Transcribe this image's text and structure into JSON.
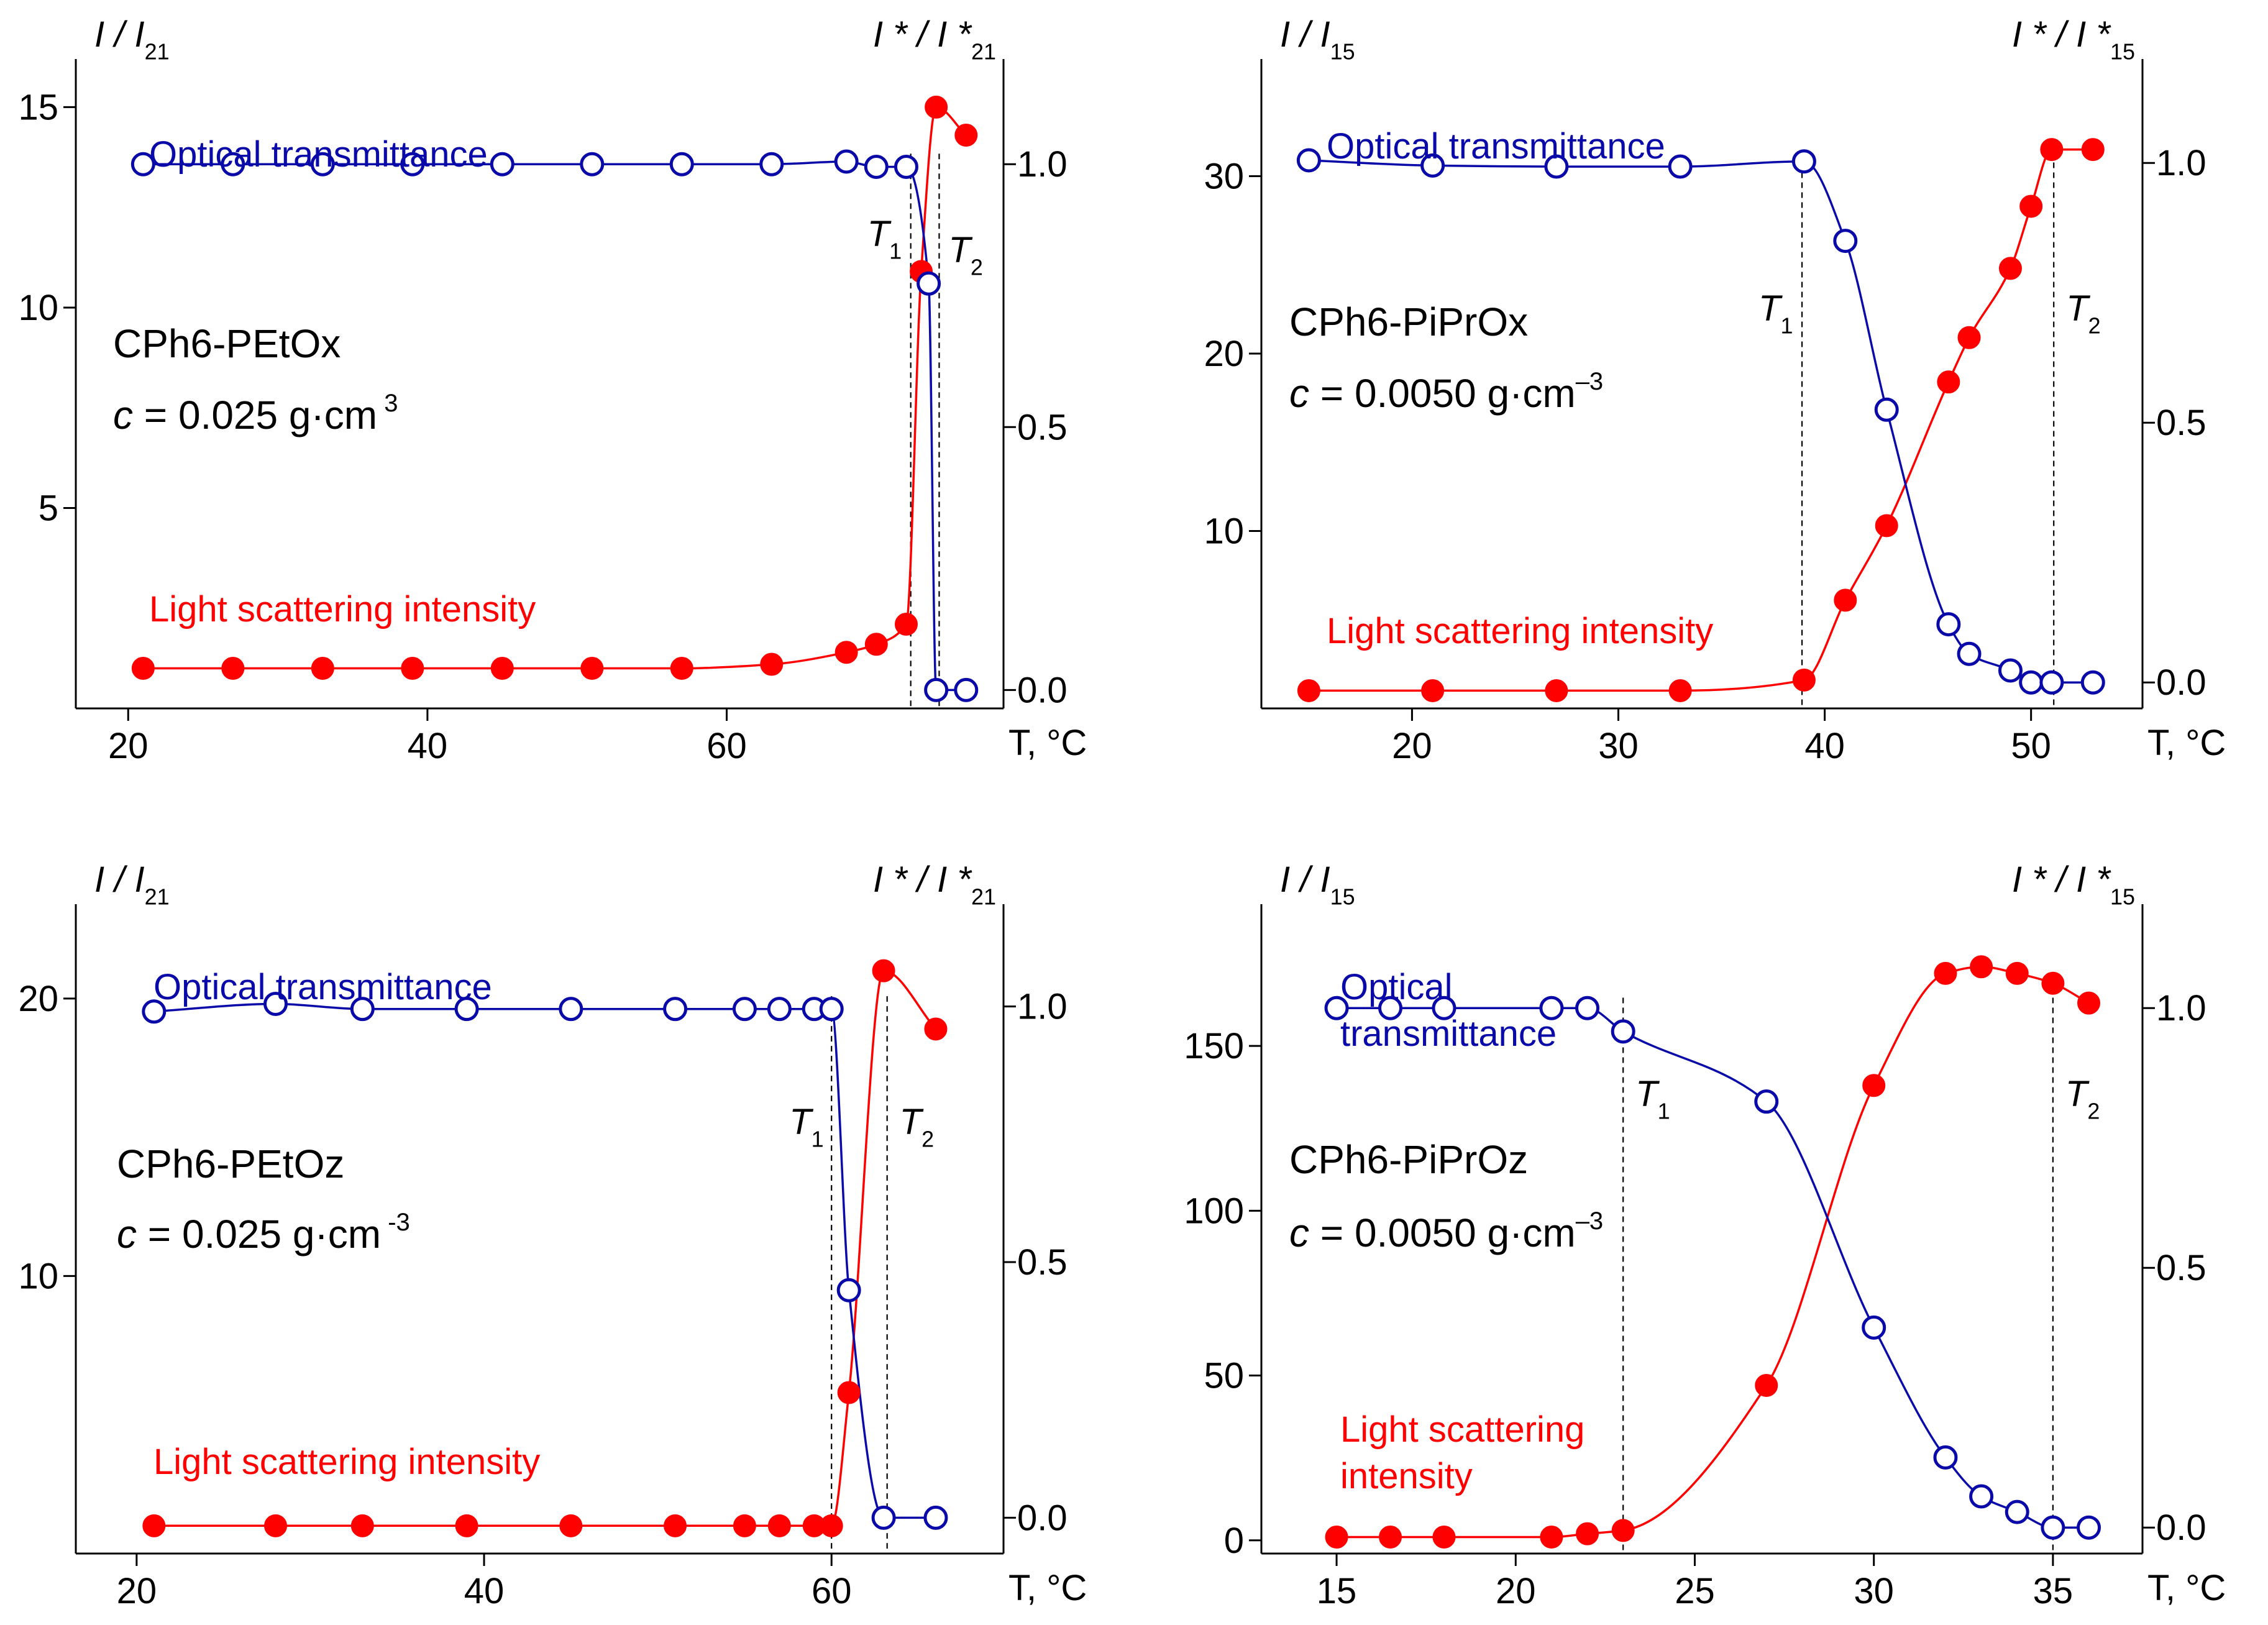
{
  "colors": {
    "transmittance": "#0a0aa8",
    "scattering": "#ff0000",
    "axis": "#000000",
    "text": "#000000"
  },
  "chart_data": [
    {
      "type": "line",
      "panel": "top-left",
      "sample": "CPh6-PEtOx",
      "concentration": {
        "prefix": "c",
        "rest": " = 0.025 g·cm",
        "sup": " 3"
      },
      "left_axis": {
        "label": "I / I",
        "sub": "21",
        "ylim": [
          0,
          16.2
        ],
        "ticks": [
          5,
          10,
          15
        ],
        "tick_labels": [
          "5",
          "10",
          "15"
        ]
      },
      "right_axis": {
        "label": "I * / I *",
        "sub": "21",
        "ylim": [
          -0.035,
          1.2
        ],
        "ticks": [
          0.0,
          0.5,
          1.0
        ],
        "tick_labels": [
          "0.0",
          "0.5",
          "1.0"
        ]
      },
      "x_axis": {
        "label": "T, °C",
        "xlim": [
          16.5,
          78.5
        ],
        "ticks": [
          20,
          40,
          60
        ],
        "tick_labels": [
          "20",
          "40",
          "60"
        ]
      },
      "T1": 72.3,
      "T2": 74.2,
      "T1_label": {
        "base": "T",
        "sub": "1"
      },
      "T2_label": {
        "base": "T",
        "sub": "2"
      },
      "transmittance_label": [
        "Optical transmittance"
      ],
      "scattering_label": [
        "Light scattering intensity"
      ],
      "series": [
        {
          "name": "Optical transmittance",
          "axis": "right",
          "marker": "open",
          "x": [
            21,
            27,
            33,
            39,
            45,
            51,
            57,
            63,
            68,
            70,
            72,
            73.5,
            74,
            76
          ],
          "values": [
            1.0,
            1.0,
            1.0,
            1.0,
            1.0,
            1.0,
            1.0,
            1.0,
            1.005,
            0.995,
            0.995,
            0.773,
            0.0,
            0.0
          ]
        },
        {
          "name": "Light scattering intensity",
          "axis": "left",
          "marker": "filled",
          "x": [
            21,
            27,
            33,
            39,
            45,
            51,
            57,
            63,
            68,
            70,
            72,
            73,
            74,
            76
          ],
          "values": [
            1.0,
            1.0,
            1.0,
            1.0,
            1.0,
            1.0,
            1.0,
            1.1,
            1.4,
            1.6,
            2.1,
            10.9,
            15.0,
            14.3
          ]
        }
      ]
    },
    {
      "type": "line",
      "panel": "top-right",
      "sample": "CPh6-PiPrOx",
      "concentration": {
        "prefix": "c",
        "rest": " = 0.0050 g·cm",
        "sup": "–3"
      },
      "left_axis": {
        "label": "I / I",
        "sub": "15",
        "ylim": [
          0,
          36.6
        ],
        "ticks": [
          10,
          20,
          30
        ],
        "tick_labels": [
          "10",
          "20",
          "30"
        ]
      },
      "right_axis": {
        "label": "I * / I *",
        "sub": "15",
        "ylim": [
          -0.05,
          1.2
        ],
        "ticks": [
          0.0,
          0.5,
          1.0
        ],
        "tick_labels": [
          "0.0",
          "0.5",
          "1.0"
        ]
      },
      "x_axis": {
        "label": "T, °C",
        "xlim": [
          12.7,
          55.4
        ],
        "ticks": [
          20,
          30,
          40,
          50
        ],
        "tick_labels": [
          "20",
          "30",
          "40",
          "50"
        ]
      },
      "T1": 38.9,
      "T2": 51.1,
      "T1_label": {
        "base": "T",
        "sub": "1"
      },
      "T2_label": {
        "base": "T",
        "sub": "2"
      },
      "transmittance_label": [
        "Optical transmittance"
      ],
      "scattering_label": [
        "Light scattering intensity"
      ],
      "series": [
        {
          "name": "Optical transmittance",
          "axis": "right",
          "marker": "open",
          "x": [
            15,
            21,
            27,
            33,
            39,
            41,
            43,
            46,
            47,
            49,
            50,
            51,
            53
          ],
          "values": [
            1.005,
            0.995,
            0.993,
            0.993,
            1.003,
            0.85,
            0.525,
            0.112,
            0.055,
            0.023,
            0.0,
            0.0,
            0.0
          ]
        },
        {
          "name": "Light scattering intensity",
          "axis": "left",
          "marker": "filled",
          "x": [
            15,
            21,
            27,
            33,
            39,
            41,
            43,
            46,
            47,
            49,
            50,
            51,
            53
          ],
          "values": [
            1.0,
            1.0,
            1.0,
            1.0,
            1.6,
            6.1,
            10.3,
            18.4,
            20.9,
            24.8,
            28.3,
            31.5,
            31.5
          ]
        }
      ]
    },
    {
      "type": "line",
      "panel": "bottom-left",
      "sample": "CPh6-PEtOz",
      "concentration": {
        "prefix": "c",
        "rest": " = 0.025 g·cm",
        "sup": " -3"
      },
      "left_axis": {
        "label": "I / I",
        "sub": "21",
        "ylim": [
          0,
          23.4
        ],
        "ticks": [
          10,
          20
        ],
        "tick_labels": [
          "10",
          "20"
        ]
      },
      "right_axis": {
        "label": "I * / I *",
        "sub": "21",
        "ylim": [
          -0.07,
          1.2
        ],
        "ticks": [
          0.0,
          0.5,
          1.0
        ],
        "tick_labels": [
          "0.0",
          "0.5",
          "1.0"
        ]
      },
      "x_axis": {
        "label": "T, °C",
        "xlim": [
          16.5,
          69.9
        ],
        "ticks": [
          20,
          40,
          60
        ],
        "tick_labels": [
          "20",
          "40",
          "60"
        ]
      },
      "T1": 60.0,
      "T2": 63.2,
      "T1_label": {
        "base": "T",
        "sub": "1"
      },
      "T2_label": {
        "base": "T",
        "sub": "2"
      },
      "transmittance_label": [
        "Optical transmittance"
      ],
      "scattering_label": [
        "Light scattering intensity"
      ],
      "series": [
        {
          "name": "Optical transmittance",
          "axis": "right",
          "marker": "open",
          "x": [
            21,
            28,
            33,
            39,
            45,
            51,
            55,
            57,
            59,
            60,
            61,
            63,
            66
          ],
          "values": [
            0.99,
            1.005,
            0.995,
            0.995,
            0.995,
            0.995,
            0.995,
            0.995,
            0.995,
            0.995,
            0.445,
            0.0,
            0.0
          ]
        },
        {
          "name": "Light scattering intensity",
          "axis": "left",
          "marker": "filled",
          "x": [
            21,
            28,
            33,
            39,
            45,
            51,
            55,
            57,
            59,
            60,
            61,
            63,
            66
          ],
          "values": [
            1.0,
            1.0,
            1.0,
            1.0,
            1.0,
            1.0,
            1.0,
            1.0,
            1.0,
            1.0,
            5.8,
            21.0,
            18.9
          ]
        }
      ]
    },
    {
      "type": "line",
      "panel": "bottom-right",
      "sample": "CPh6-PiPrOz",
      "concentration": {
        "prefix": "c",
        "rest": " = 0.0050 g·cm",
        "sup": "–3"
      },
      "left_axis": {
        "label": "I / I",
        "sub": "15",
        "ylim": [
          -4,
          193
        ],
        "ticks": [
          0,
          50,
          100,
          150
        ],
        "tick_labels": [
          "0",
          "50",
          "100",
          "150"
        ]
      },
      "right_axis": {
        "label": "I * / I *",
        "sub": "15",
        "ylim": [
          -0.05,
          1.2
        ],
        "ticks": [
          0.0,
          0.5,
          1.0
        ],
        "tick_labels": [
          "0.0",
          "0.5",
          "1.0"
        ]
      },
      "x_axis": {
        "label": "T, °C",
        "xlim": [
          12.9,
          37.5
        ],
        "ticks": [
          15,
          20,
          25,
          30,
          35
        ],
        "tick_labels": [
          "15",
          "20",
          "25",
          "30",
          "35"
        ]
      },
      "T1": 23.0,
      "T2": 35.0,
      "T1_label": {
        "base": "T",
        "sub": "1"
      },
      "T2_label": {
        "base": "T",
        "sub": "2"
      },
      "transmittance_label": [
        "Optical",
        "transmittance"
      ],
      "scattering_label": [
        "Light scattering",
        " intensity"
      ],
      "series": [
        {
          "name": "Optical transmittance",
          "axis": "right",
          "marker": "open",
          "x": [
            15,
            16.5,
            18,
            21,
            22,
            23,
            27,
            30,
            32,
            33,
            34,
            35,
            36
          ],
          "values": [
            1.0,
            1.0,
            1.0,
            1.0,
            1.0,
            0.955,
            0.82,
            0.385,
            0.135,
            0.06,
            0.03,
            0.0,
            0.0
          ]
        },
        {
          "name": "Light scattering intensity",
          "axis": "left",
          "marker": "filled",
          "x": [
            15,
            16.5,
            18,
            21,
            22,
            23,
            27,
            30,
            32,
            33,
            34,
            35,
            36
          ],
          "values": [
            1,
            1,
            1,
            1,
            2,
            3,
            47,
            138,
            172,
            174,
            172,
            169,
            163
          ]
        }
      ]
    }
  ]
}
